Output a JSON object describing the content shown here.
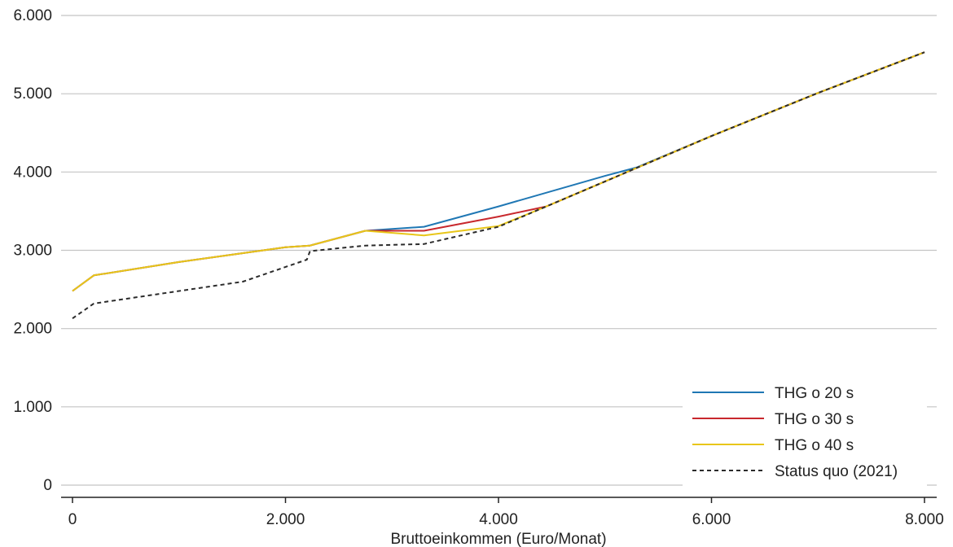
{
  "chart_data": {
    "type": "line",
    "xlabel": "Bruttoeinkommen (Euro/Monat)",
    "ylabel": "",
    "xlim": [
      0,
      8000
    ],
    "ylim": [
      0,
      6000
    ],
    "x_ticks": [
      0,
      2000,
      4000,
      6000,
      8000
    ],
    "x_tick_labels": [
      "0",
      "2.000",
      "4.000",
      "6.000",
      "8.000"
    ],
    "y_ticks": [
      0,
      1000,
      2000,
      3000,
      4000,
      5000,
      6000
    ],
    "y_tick_labels": [
      "0",
      "1.000",
      "2.000",
      "3.000",
      "4.000",
      "5.000",
      "6.000"
    ],
    "grid": "horizontal",
    "legend_position": "bottom-right",
    "series": [
      {
        "name": "THG o 20 s",
        "color": "#1f77b4",
        "dash": "solid",
        "points": [
          [
            0,
            2480
          ],
          [
            200,
            2680
          ],
          [
            1000,
            2850
          ],
          [
            2000,
            3040
          ],
          [
            2230,
            3060
          ],
          [
            2750,
            3250
          ],
          [
            3300,
            3300
          ],
          [
            4000,
            3560
          ],
          [
            5000,
            3950
          ],
          [
            5300,
            4060
          ],
          [
            6000,
            4460
          ],
          [
            7000,
            5010
          ],
          [
            8000,
            5530
          ]
        ]
      },
      {
        "name": "THG o 30 s",
        "color": "#c8282d",
        "dash": "solid",
        "points": [
          [
            0,
            2480
          ],
          [
            200,
            2680
          ],
          [
            1000,
            2850
          ],
          [
            2000,
            3040
          ],
          [
            2230,
            3060
          ],
          [
            2750,
            3250
          ],
          [
            3300,
            3250
          ],
          [
            4000,
            3430
          ],
          [
            4450,
            3560
          ],
          [
            5000,
            3880
          ],
          [
            6000,
            4460
          ],
          [
            7000,
            5010
          ],
          [
            8000,
            5530
          ]
        ]
      },
      {
        "name": "THG o 40 s",
        "color": "#e8c619",
        "dash": "solid",
        "points": [
          [
            0,
            2480
          ],
          [
            200,
            2680
          ],
          [
            1000,
            2850
          ],
          [
            2000,
            3040
          ],
          [
            2230,
            3060
          ],
          [
            2750,
            3250
          ],
          [
            3300,
            3190
          ],
          [
            4000,
            3310
          ],
          [
            4450,
            3560
          ],
          [
            5000,
            3880
          ],
          [
            6000,
            4460
          ],
          [
            7000,
            5010
          ],
          [
            8000,
            5530
          ]
        ]
      },
      {
        "name": "Status quo (2021)",
        "color": "#2b2b2b",
        "dash": "dashed",
        "points": [
          [
            0,
            2130
          ],
          [
            200,
            2320
          ],
          [
            1600,
            2600
          ],
          [
            2200,
            2880
          ],
          [
            2230,
            2990
          ],
          [
            2750,
            3060
          ],
          [
            3300,
            3080
          ],
          [
            4000,
            3300
          ],
          [
            4450,
            3560
          ],
          [
            5000,
            3880
          ],
          [
            6000,
            4460
          ],
          [
            7000,
            5010
          ],
          [
            8000,
            5530
          ]
        ]
      }
    ]
  }
}
